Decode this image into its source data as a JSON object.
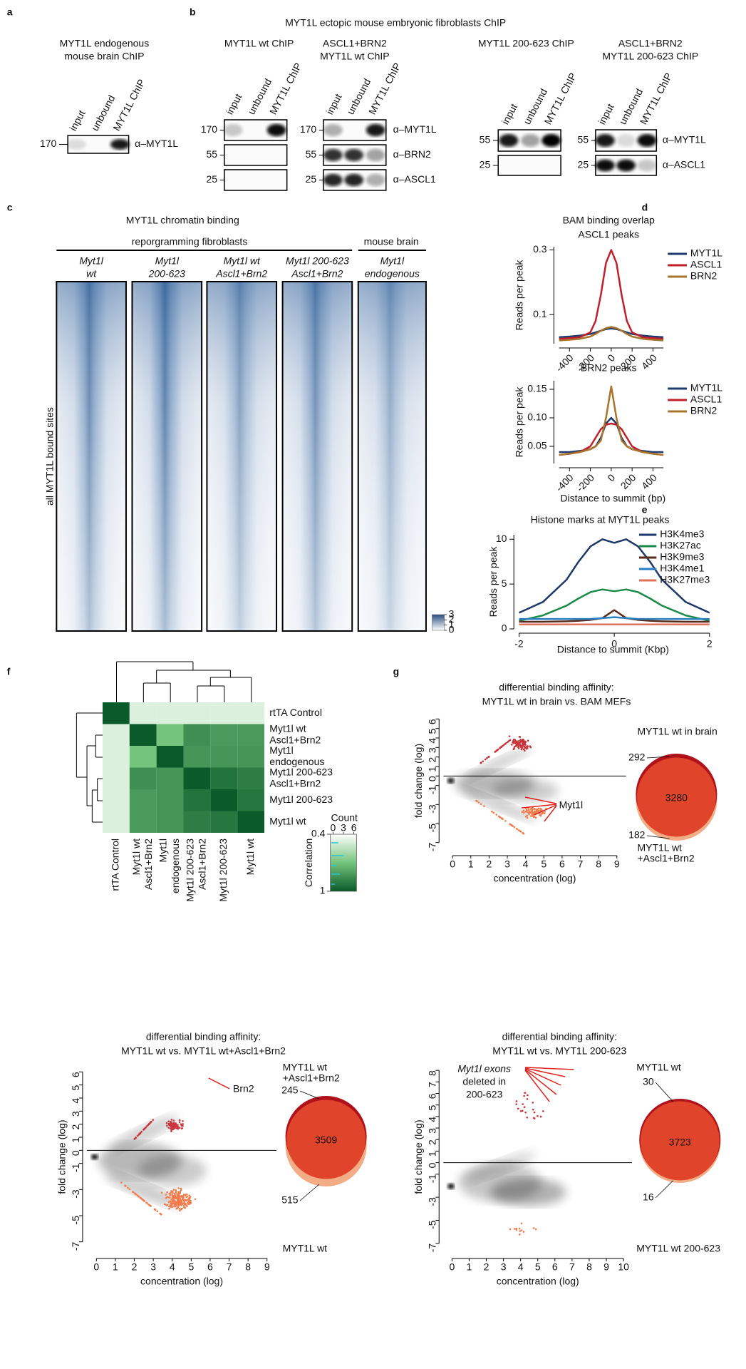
{
  "panels": {
    "a": {
      "letter": "a",
      "title": [
        "MYT1L endogenous",
        "mouse brain ChIP"
      ],
      "lanes": [
        "input",
        "unbound",
        "MYT1L ChIP"
      ],
      "markers": [
        "170"
      ],
      "antibodies": [
        "α–MYT1L"
      ]
    },
    "b": {
      "letter": "b",
      "title": "MYT1L ectopic mouse embryonic fibroblasts ChIP",
      "blots": [
        {
          "title": [
            "MYT1L wt ChIP"
          ],
          "lanes": [
            "input",
            "unbound",
            "MYT1L ChIP"
          ],
          "markers": [
            "170",
            "55",
            "25"
          ]
        },
        {
          "title": [
            "ASCL1+BRN2",
            "MYT1L wt ChIP"
          ],
          "lanes": [
            "input",
            "unbound",
            "MYT1L ChIP"
          ],
          "markers": [
            "170",
            "55",
            "25"
          ],
          "antibodies": [
            "α–MYT1L",
            "α–BRN2",
            "α–ASCL1"
          ]
        },
        {
          "title": [
            "MYT1L 200-623 ChIP"
          ],
          "lanes": [
            "input",
            "unbound",
            "MYT1L ChIP"
          ],
          "markers": [
            "55",
            "25"
          ]
        },
        {
          "title": [
            "ASCL1+BRN2",
            "MYT1L 200-623 ChIP"
          ],
          "lanes": [
            "input",
            "unbound",
            "MYT1L ChIP"
          ],
          "markers": [
            "55",
            "25"
          ],
          "antibodies": [
            "α–MYT1L",
            "α–ASCL1"
          ]
        }
      ]
    },
    "c": {
      "letter": "c",
      "title": "MYT1L chromatin binding",
      "groups": [
        "reporgramming fibroblasts",
        "mouse brain"
      ],
      "columns": [
        [
          "Myt1l",
          "wt"
        ],
        [
          "Myt1l",
          "200-623"
        ],
        [
          "Myt1l wt",
          "Ascl1+Brn2"
        ],
        [
          "Myt1l 200-623",
          "Ascl1+Brn2"
        ],
        [
          "Myt1l",
          "endogenous"
        ]
      ],
      "ylabel": "all MYT1L bound sites",
      "colorbar_ticks": [
        3,
        2,
        1,
        0
      ]
    },
    "d": {
      "letter": "d",
      "title": "BAM binding overlap"
    },
    "e": {
      "letter": "e"
    },
    "f": {
      "letter": "f"
    },
    "g": {
      "letter": "g"
    }
  },
  "chart_data": [
    {
      "type": "line",
      "title": "ASCL1 peaks",
      "ylabel": "Reads per peak",
      "x": [
        -500,
        -400,
        -300,
        -200,
        -150,
        -100,
        -50,
        0,
        50,
        100,
        150,
        200,
        300,
        400,
        500
      ],
      "xlim": [
        -500,
        500
      ],
      "xticks": [
        -400,
        -200,
        0,
        200,
        400
      ],
      "ylim": [
        0.01,
        0.31
      ],
      "yticks": [
        0.1,
        0.3
      ],
      "series": [
        {
          "name": "MYT1L",
          "color": "#1f3a6e",
          "values": [
            0.03,
            0.032,
            0.035,
            0.04,
            0.045,
            0.05,
            0.055,
            0.057,
            0.055,
            0.05,
            0.045,
            0.04,
            0.035,
            0.032,
            0.03
          ]
        },
        {
          "name": "ASCL1",
          "color": "#c01f2b",
          "values": [
            0.025,
            0.027,
            0.03,
            0.045,
            0.08,
            0.16,
            0.26,
            0.3,
            0.26,
            0.16,
            0.08,
            0.045,
            0.03,
            0.027,
            0.025
          ]
        },
        {
          "name": "BRN2",
          "color": "#a8732a",
          "values": [
            0.02,
            0.022,
            0.025,
            0.032,
            0.04,
            0.05,
            0.058,
            0.062,
            0.058,
            0.05,
            0.04,
            0.032,
            0.025,
            0.022,
            0.02
          ]
        }
      ]
    },
    {
      "type": "line",
      "title": "BRN2 peaks",
      "ylabel": "Reads per peak",
      "xlabel": "Distance to summit (bp)",
      "x": [
        -500,
        -400,
        -300,
        -200,
        -150,
        -100,
        -50,
        0,
        50,
        100,
        150,
        200,
        300,
        400,
        500
      ],
      "xlim": [
        -500,
        500
      ],
      "xticks": [
        -400,
        -200,
        0,
        200,
        400
      ],
      "ylim": [
        0.02,
        0.165
      ],
      "yticks": [
        0.05,
        {
          "value": 0.1,
          "label": "0.10"
        },
        0.15
      ],
      "series": [
        {
          "name": "MYT1L",
          "color": "#1f3a6e",
          "values": [
            0.04,
            0.04,
            0.042,
            0.045,
            0.05,
            0.065,
            0.09,
            0.1,
            0.09,
            0.065,
            0.05,
            0.045,
            0.042,
            0.04,
            0.04
          ]
        },
        {
          "name": "ASCL1",
          "color": "#c01f2b",
          "values": [
            0.035,
            0.037,
            0.04,
            0.05,
            0.065,
            0.08,
            0.088,
            0.09,
            0.088,
            0.08,
            0.065,
            0.05,
            0.04,
            0.037,
            0.035
          ]
        },
        {
          "name": "BRN2",
          "color": "#a8732a",
          "values": [
            0.035,
            0.037,
            0.04,
            0.045,
            0.05,
            0.06,
            0.1,
            0.155,
            0.1,
            0.06,
            0.05,
            0.045,
            0.04,
            0.037,
            0.035
          ]
        }
      ]
    },
    {
      "type": "line",
      "title": "Histone marks at MYT1L peaks",
      "ylabel": "Reads per peak",
      "xlabel": "Distance to summit (Kbp)",
      "x": [
        -2,
        -1.5,
        -1,
        -0.75,
        -0.5,
        -0.25,
        0,
        0.25,
        0.5,
        0.75,
        1,
        1.5,
        2
      ],
      "xlim": [
        -2,
        2
      ],
      "xticks": [
        -2,
        0,
        2
      ],
      "ylim": [
        0,
        10.5
      ],
      "yticks": [
        0,
        5,
        10
      ],
      "series": [
        {
          "name": "H3K4me3",
          "color": "#1c3768",
          "values": [
            1.8,
            3,
            5.5,
            7.5,
            9.2,
            10,
            9.6,
            10,
            9.2,
            7.5,
            5.5,
            3,
            1.8
          ]
        },
        {
          "name": "H3K27ac",
          "color": "#1a8a4a",
          "values": [
            0.9,
            1.5,
            2.6,
            3.4,
            4.1,
            4.4,
            4.2,
            4.4,
            4.1,
            3.4,
            2.6,
            1.5,
            0.9
          ]
        },
        {
          "name": "H3K9me3",
          "color": "#5a2a1a",
          "values": [
            0.8,
            0.8,
            0.85,
            0.9,
            1,
            1.2,
            2.1,
            1.2,
            1,
            0.9,
            0.85,
            0.8,
            0.8
          ]
        },
        {
          "name": "H3K4me1",
          "color": "#2a7fc0",
          "values": [
            1.1,
            1.1,
            1.1,
            1.1,
            1.1,
            1.2,
            1.3,
            1.2,
            1.1,
            1.1,
            1.1,
            1.1,
            1.1
          ]
        },
        {
          "name": "H3K27me3",
          "color": "#e0735a",
          "values": [
            0.5,
            0.5,
            0.5,
            0.5,
            0.5,
            0.5,
            0.5,
            0.5,
            0.5,
            0.5,
            0.5,
            0.5,
            0.5
          ]
        }
      ]
    },
    {
      "type": "heatmap",
      "rows": [
        [
          "rtTA Control"
        ],
        [
          "Myt1l wt",
          "Ascl1+Brn2"
        ],
        [
          "Myt1l",
          "endogenous"
        ],
        [
          "Myt1l 200-623",
          "Ascl1+Brn2"
        ],
        [
          "Myt1l 200-623"
        ],
        [
          "Myt1l wt"
        ]
      ],
      "columns": [
        [
          "rtTA Control"
        ],
        [
          "Myt1l wt",
          "Ascl1+Brn2"
        ],
        [
          "Myt1l",
          "endogenous"
        ],
        [
          "Myt1l 200-623",
          "Ascl1+Brn2"
        ],
        [
          "Myt1l 200-623"
        ],
        [
          "Myt1l wt"
        ]
      ],
      "values": [
        [
          1,
          0.45,
          0.45,
          0.45,
          0.45,
          0.45
        ],
        [
          0.45,
          1,
          0.7,
          0.85,
          0.82,
          0.82
        ],
        [
          0.45,
          0.7,
          1,
          0.83,
          0.83,
          0.83
        ],
        [
          0.45,
          0.85,
          0.83,
          1,
          0.93,
          0.9
        ],
        [
          0.45,
          0.82,
          0.83,
          0.93,
          1,
          0.92
        ],
        [
          0.45,
          0.82,
          0.83,
          0.9,
          0.92,
          1
        ]
      ],
      "colorbar_title": "Correlation",
      "zlim": [
        0.4,
        1
      ],
      "zticks": [
        0.4,
        1
      ],
      "count_title": "Count",
      "count_ticks": [
        0,
        3,
        6
      ]
    }
  ],
  "ma_plots": [
    {
      "title": [
        "differential binding affinity:",
        "MYT1L wt in brain vs. BAM MEFs"
      ],
      "xlabel": "concentration (log)",
      "ylabel": "fold change (log)",
      "xlim": [
        -0.5,
        9.5
      ],
      "xticks": [
        0,
        1,
        2,
        3,
        4,
        5,
        6,
        7,
        8,
        9
      ],
      "ylim": [
        -8,
        7
      ],
      "yticks": [
        6,
        5,
        4,
        3,
        2,
        1,
        0,
        -1,
        -3,
        -5,
        -7
      ],
      "annotation": [
        "Myt1l"
      ],
      "venn": {
        "top_label": [
          "MYT1L wt in brain"
        ],
        "counts": [
          292,
          3280,
          182
        ],
        "bottom_label": [
          "MYT1L wt",
          "+Ascl1+Brn2"
        ]
      }
    },
    {
      "title": [
        "differential binding affinity:",
        "MYT1L wt  vs. MYT1L wt+Ascl1+Brn2"
      ],
      "xlabel": "concentration (log)",
      "ylabel": "fold change (log)",
      "xlim": [
        -0.5,
        9.5
      ],
      "xticks": [
        0,
        1,
        2,
        3,
        4,
        5,
        6,
        7,
        8,
        9
      ],
      "ylim": [
        -8,
        7
      ],
      "yticks": [
        6,
        5,
        4,
        3,
        2,
        1,
        0,
        -1,
        -3,
        -5,
        -7
      ],
      "annotation": [
        "Brn2"
      ],
      "venn": {
        "top_label": [
          "MYT1L wt",
          "+Ascl1+Brn2"
        ],
        "counts": [
          245,
          3509,
          515
        ],
        "bottom_label": [
          "MYT1L wt"
        ]
      }
    },
    {
      "title": [
        "differential binding affinity:",
        "MYT1L wt vs. MYT1L 200-623"
      ],
      "xlabel": "concentration (log)",
      "ylabel": "fold change (log)",
      "xlim": [
        -0.5,
        10.5
      ],
      "xticks": [
        0,
        1,
        2,
        3,
        4,
        5,
        6,
        7,
        8,
        9,
        10
      ],
      "ylim": [
        -8,
        9
      ],
      "yticks": [
        8,
        7,
        6,
        5,
        4,
        3,
        2,
        1,
        0,
        -1,
        -3,
        -5,
        -7
      ],
      "annotation": [
        "Myt1l exons",
        "deleted in",
        "200-623"
      ],
      "venn": {
        "top_label": [
          "MYT1L wt"
        ],
        "counts": [
          30,
          3723,
          16
        ],
        "bottom_label": [
          "MYT1L wt 200-623"
        ]
      }
    }
  ]
}
